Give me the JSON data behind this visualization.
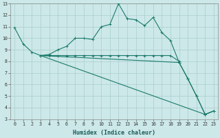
{
  "xlabel": "Humidex (Indice chaleur)",
  "xlim": [
    -0.5,
    23.5
  ],
  "ylim": [
    3,
    13
  ],
  "xtick_labels": [
    "0",
    "1",
    "2",
    "3",
    "4",
    "5",
    "6",
    "7",
    "8",
    "9",
    "10",
    "11",
    "12",
    "13",
    "14",
    "15",
    "16",
    "17",
    "18",
    "19",
    "20",
    "21",
    "22",
    "23"
  ],
  "ytick_labels": [
    "3",
    "4",
    "5",
    "6",
    "7",
    "8",
    "9",
    "10",
    "11",
    "12",
    "13"
  ],
  "background_color": "#cce8e8",
  "grid_color": "#aacece",
  "line_color": "#1a7a6a",
  "lines": [
    {
      "x": [
        0,
        1,
        2,
        3,
        4,
        5,
        6,
        7,
        8,
        9,
        10,
        11,
        12,
        13,
        14,
        15,
        16,
        17,
        18,
        19,
        20,
        21,
        22,
        23
      ],
      "y": [
        10.9,
        9.5,
        8.8,
        8.5,
        8.6,
        9.0,
        9.3,
        10.0,
        10.0,
        9.9,
        11.0,
        11.2,
        13.0,
        11.7,
        11.6,
        11.1,
        11.8,
        10.5,
        9.8,
        7.9,
        6.5,
        5.0,
        3.4,
        3.7
      ]
    },
    {
      "x": [
        3,
        4,
        5,
        6,
        7,
        8,
        9,
        10,
        11,
        12,
        13,
        14,
        15,
        16,
        17,
        18,
        19
      ],
      "y": [
        8.5,
        8.5,
        8.5,
        8.5,
        8.5,
        8.5,
        8.5,
        8.5,
        8.5,
        8.5,
        8.5,
        8.5,
        8.5,
        8.5,
        8.5,
        8.5,
        8.0
      ]
    },
    {
      "x": [
        3,
        22,
        23
      ],
      "y": [
        8.5,
        3.4,
        3.7
      ]
    },
    {
      "x": [
        3,
        19,
        20,
        21,
        22,
        23
      ],
      "y": [
        8.5,
        7.9,
        6.5,
        5.0,
        3.4,
        3.7
      ]
    }
  ]
}
